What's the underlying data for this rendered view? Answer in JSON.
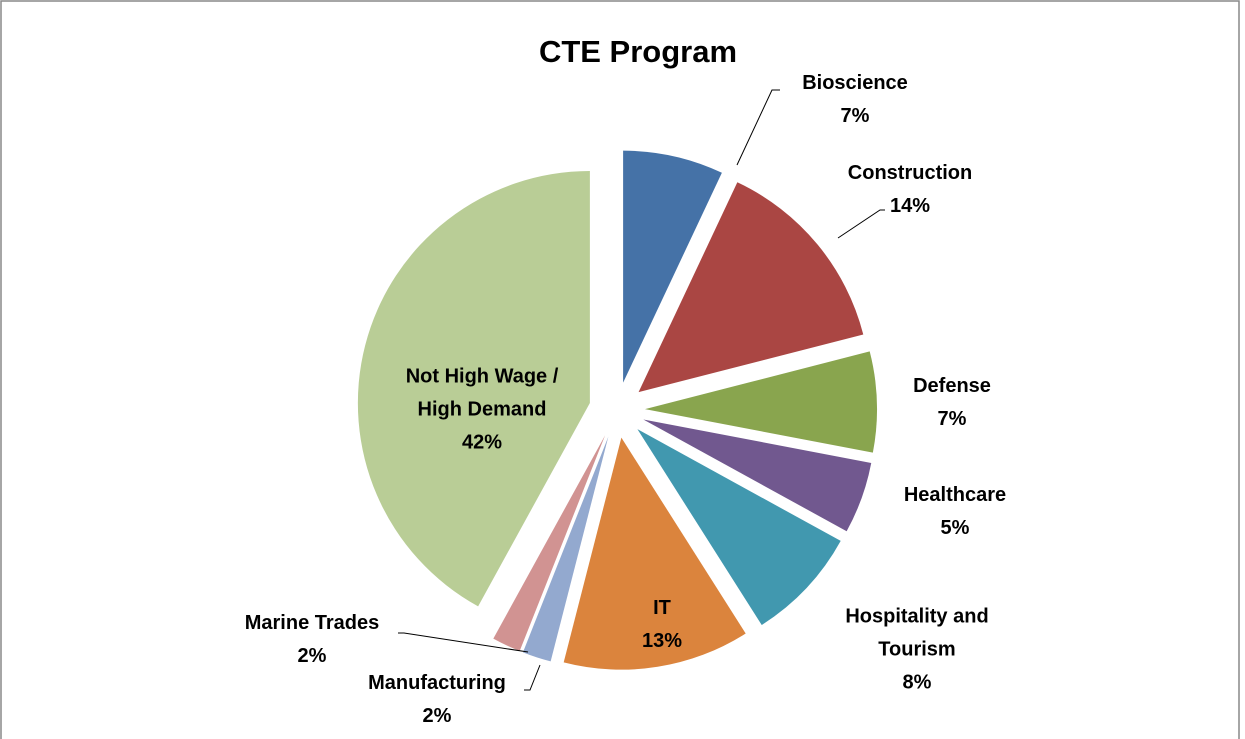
{
  "chart_data": {
    "type": "pie",
    "title": "CTE Program",
    "categories": [
      "Bioscience",
      "Construction",
      "Defense",
      "Healthcare",
      "Hospitality and Tourism",
      "IT",
      "Manufacturing",
      "Marine Trades",
      "Not High Wage / High Demand"
    ],
    "values": [
      7,
      14,
      7,
      5,
      8,
      13,
      2,
      2,
      42
    ],
    "value_labels": [
      "7%",
      "14%",
      "7%",
      "5%",
      "8%",
      "13%",
      "2%",
      "2%",
      "42%"
    ],
    "colors": [
      "#4572a7",
      "#aa4643",
      "#89a54e",
      "#71588f",
      "#4198af",
      "#db843d",
      "#93a9cf",
      "#d19392",
      "#b9cd96"
    ]
  }
}
